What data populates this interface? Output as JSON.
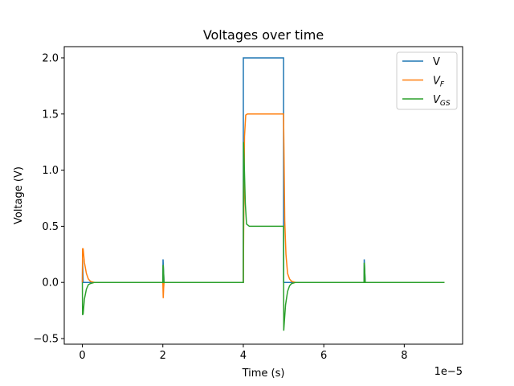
{
  "chart_data": {
    "type": "line",
    "title": "Voltages over time",
    "xlabel": "Time (s)",
    "ylabel": "Voltage (V)",
    "x_offset_text": "1e−5",
    "xlim": [
      -0.45,
      9.45
    ],
    "ylim": [
      -0.55,
      2.1
    ],
    "x_ticks": [
      0,
      2,
      4,
      6,
      8
    ],
    "x_tick_labels": [
      "0",
      "2",
      "4",
      "6",
      "8"
    ],
    "y_ticks": [
      -0.5,
      0.0,
      0.5,
      1.0,
      1.5,
      2.0
    ],
    "y_tick_labels": [
      "−0.5",
      "0.0",
      "0.5",
      "1.0",
      "1.5",
      "2.0"
    ],
    "grid": false,
    "legend_position": "top-right",
    "series": [
      {
        "name": "V",
        "legend_main": "V",
        "legend_sub": "",
        "color": "#1f77b4",
        "x": [
          0,
          0.005,
          0.006,
          0.02,
          2.0,
          2.005,
          2.006,
          2.03,
          4.0,
          4.001,
          4.02,
          5.0,
          5.001,
          5.02,
          7.0,
          7.005,
          7.006,
          7.03,
          9.0
        ],
        "y": [
          0,
          0.2,
          0.2,
          0.0,
          0.0,
          0.2,
          0.2,
          0.0,
          0.0,
          2.0,
          2.0,
          2.0,
          0.0,
          0.0,
          0.0,
          0.2,
          0.2,
          0.0,
          0.0
        ]
      },
      {
        "name": "V_F",
        "legend_main": "V",
        "legend_sub": "F",
        "color": "#ff7f0e",
        "x": [
          0,
          0.005,
          0.02,
          0.05,
          0.1,
          0.15,
          0.2,
          0.3,
          2.0,
          2.01,
          2.02,
          2.03,
          4.0,
          4.01,
          4.03,
          4.06,
          4.1,
          4.2,
          5.0,
          5.01,
          5.03,
          5.06,
          5.1,
          5.15,
          5.2,
          5.3,
          9.0
        ],
        "y": [
          0,
          0.3,
          0.3,
          0.18,
          0.08,
          0.03,
          0.01,
          0.0,
          0.0,
          -0.14,
          -0.05,
          0.0,
          0.0,
          0.5,
          1.3,
          1.49,
          1.5,
          1.5,
          1.5,
          1.2,
          0.55,
          0.25,
          0.08,
          0.03,
          0.01,
          0.0,
          0.0
        ]
      },
      {
        "name": "V_GS",
        "legend_main": "V",
        "legend_sub": "GS",
        "color": "#2ca02c",
        "x": [
          0,
          0.005,
          0.02,
          0.05,
          0.1,
          0.15,
          0.2,
          0.3,
          2.0,
          2.005,
          2.01,
          2.03,
          4.0,
          4.005,
          4.02,
          4.05,
          4.08,
          4.15,
          4.3,
          5.0,
          5.005,
          5.02,
          5.05,
          5.1,
          5.15,
          5.2,
          5.3,
          7.0,
          7.005,
          7.01,
          7.03,
          9.0
        ],
        "y": [
          0,
          -0.29,
          -0.28,
          -0.15,
          -0.06,
          -0.02,
          -0.01,
          0.0,
          0.0,
          0.15,
          0.15,
          0.0,
          0.0,
          1.25,
          1.1,
          0.7,
          0.52,
          0.5,
          0.5,
          0.5,
          -0.43,
          -0.35,
          -0.2,
          -0.08,
          -0.03,
          -0.01,
          0.0,
          0.0,
          0.17,
          0.17,
          0.0,
          0.0
        ]
      }
    ]
  }
}
